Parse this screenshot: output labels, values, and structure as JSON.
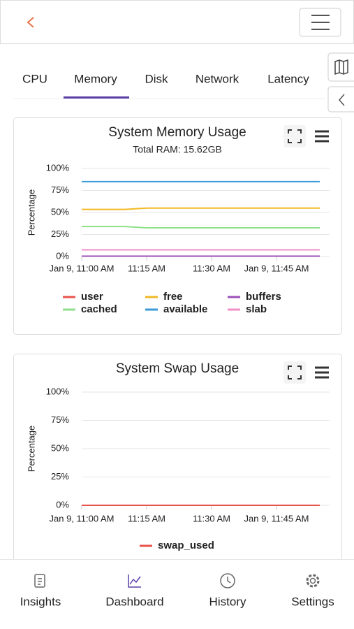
{
  "tabs": [
    "CPU",
    "Memory",
    "Disk",
    "Network",
    "Latency"
  ],
  "nav": [
    "Insights",
    "Dashboard",
    "History",
    "Settings"
  ],
  "chart_data": [
    {
      "type": "line",
      "title": "System Memory Usage",
      "subtitle": "Total RAM: 15.62GB",
      "y_label": "Percentage",
      "x": [
        "Jan 9, 11:00 AM",
        "Jan 9, 11:05 AM",
        "Jan 9, 11:10 AM",
        "Jan 9, 11:15 AM",
        "Jan 9, 11:20 AM",
        "Jan 9, 11:25 AM",
        "Jan 9, 11:30 AM",
        "Jan 9, 11:35 AM",
        "Jan 9, 11:40 AM",
        "Jan 9, 11:45 AM",
        "Jan 9, 11:50 AM",
        "Jan 9, 11:55 AM"
      ],
      "xticks": [
        {
          "value": "Jan 9, 11:00 AM",
          "label": "Jan 9, 11:00 AM"
        },
        {
          "value": "Jan 9, 11:15 AM",
          "label": "11:15 AM"
        },
        {
          "value": "Jan 9, 11:30 AM",
          "label": "11:30 AM"
        },
        {
          "value": "Jan 9, 11:45 AM",
          "label": "Jan 9, 11:45 AM"
        }
      ],
      "ylim": [
        0,
        100
      ],
      "yticks": [
        {
          "value": 0,
          "label": "0%"
        },
        {
          "value": 25,
          "label": "25%"
        },
        {
          "value": 50,
          "label": "50%"
        },
        {
          "value": 75,
          "label": "75%"
        },
        {
          "value": 100,
          "label": "100%"
        }
      ],
      "grid": true,
      "series": [
        {
          "name": "user",
          "color": "#e8534b",
          "values": [
            0.4,
            0.4,
            0.4,
            0.4,
            0.4,
            0.4,
            0.4,
            0.4,
            0.4,
            0.4,
            0.4,
            0.4
          ]
        },
        {
          "name": "free",
          "color": "#f2b824",
          "values": [
            53.5,
            53.5,
            53.5,
            55,
            55,
            55,
            55,
            55,
            55,
            55,
            55,
            55
          ]
        },
        {
          "name": "buffers",
          "color": "#9b4fb8",
          "values": [
            0.4,
            0.4,
            0.4,
            0.4,
            0.4,
            0.4,
            0.4,
            0.4,
            0.4,
            0.4,
            0.4,
            0.4
          ]
        },
        {
          "name": "cached",
          "color": "#8ee08a",
          "values": [
            34,
            34,
            34,
            32.5,
            32.5,
            32.5,
            32.5,
            32.5,
            32.5,
            32.5,
            32.5,
            32.5
          ]
        },
        {
          "name": "available",
          "color": "#3a9ad9",
          "values": [
            85,
            85,
            85,
            85,
            85,
            85,
            85,
            85,
            85,
            85,
            85,
            85
          ]
        },
        {
          "name": "slab",
          "color": "#f08fc8",
          "values": [
            7.5,
            7.5,
            7.5,
            7.5,
            7.5,
            7.5,
            7.5,
            7.5,
            7.5,
            7.5,
            7.5,
            7.5
          ]
        }
      ]
    },
    {
      "type": "line",
      "title": "System Swap Usage",
      "y_label": "Percentage",
      "x": [
        "Jan 9, 11:00 AM",
        "Jan 9, 11:05 AM",
        "Jan 9, 11:10 AM",
        "Jan 9, 11:15 AM",
        "Jan 9, 11:20 AM",
        "Jan 9, 11:25 AM",
        "Jan 9, 11:30 AM",
        "Jan 9, 11:35 AM",
        "Jan 9, 11:40 AM",
        "Jan 9, 11:45 AM",
        "Jan 9, 11:50 AM",
        "Jan 9, 11:55 AM"
      ],
      "xticks": [
        {
          "value": "Jan 9, 11:00 AM",
          "label": "Jan 9, 11:00 AM"
        },
        {
          "value": "Jan 9, 11:15 AM",
          "label": "11:15 AM"
        },
        {
          "value": "Jan 9, 11:30 AM",
          "label": "11:30 AM"
        },
        {
          "value": "Jan 9, 11:45 AM",
          "label": "Jan 9, 11:45 AM"
        }
      ],
      "ylim": [
        0,
        100
      ],
      "yticks": [
        {
          "value": 0,
          "label": "0%"
        },
        {
          "value": 25,
          "label": "25%"
        },
        {
          "value": 50,
          "label": "50%"
        },
        {
          "value": 75,
          "label": "75%"
        },
        {
          "value": 100,
          "label": "100%"
        }
      ],
      "grid": true,
      "series": [
        {
          "name": "swap_used",
          "color": "#e8534b",
          "values": [
            0,
            0,
            0,
            0,
            0,
            0,
            0,
            0,
            0,
            0,
            0,
            0
          ]
        }
      ]
    }
  ]
}
